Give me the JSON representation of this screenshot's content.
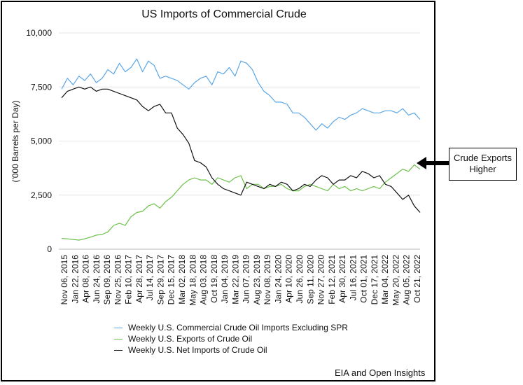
{
  "chart_data": {
    "type": "line",
    "title": "US Imports of Commercial Crude",
    "ylabel": "('000 Barrels per Day)",
    "xlabel": "",
    "ylim": [
      0,
      10000
    ],
    "yticks": [
      0,
      2500,
      5000,
      7500,
      10000
    ],
    "ytick_labels": [
      "0",
      "2,500",
      "5,000",
      "7,500",
      "10,000"
    ],
    "grid": true,
    "legend_position": "bottom",
    "x_tick_labels": [
      "Nov 06, 2015",
      "Jan 22, 2016",
      "Apr 08, 2016",
      "Jun 24, 2016",
      "Sep 09, 2016",
      "Nov 25, 2016",
      "Feb 10, 2017",
      "Apr 28, 2017",
      "Jul 14, 2017",
      "Sep 29, 2017",
      "Dec 15, 2017",
      "Mar 02, 2018",
      "May 18, 2018",
      "Aug 03, 2018",
      "Oct 19, 2018",
      "Jan 04, 2019",
      "Mar 22, 2019",
      "Jun 07, 2019",
      "Aug 23, 2019",
      "Nov 08, 2019",
      "Jan 24, 2020",
      "Apr 10, 2020",
      "Jun 26, 2020",
      "Sep 11, 2020",
      "Nov 27, 2020",
      "Feb 12, 2021",
      "Apr 30, 2021",
      "Jul 16, 2021",
      "Oct 01, 2021",
      "Dec 17, 2021",
      "Mar 04, 2022",
      "May 20, 2022",
      "Aug 05, 2022",
      "Oct 21, 2022"
    ],
    "series": [
      {
        "name": "Weekly U.S. Commercial Crude Oil Imports Excluding SPR",
        "color": "#5aa6e6",
        "values": [
          7400,
          7900,
          7600,
          8000,
          7800,
          8100,
          7700,
          7900,
          8300,
          8100,
          8600,
          8200,
          8400,
          8800,
          8200,
          8700,
          8500,
          7900,
          8000,
          7900,
          7800,
          7600,
          7400,
          7700,
          7900,
          8000,
          7600,
          8200,
          8100,
          8400,
          8000,
          8700,
          8600,
          8300,
          7700,
          7300,
          7100,
          6800,
          6800,
          6700,
          6300,
          6300,
          6100,
          5800,
          5500,
          5800,
          5600,
          5900,
          6100,
          6000,
          6200,
          6300,
          6500,
          6400,
          6300,
          6300,
          6400,
          6400,
          6300,
          6500,
          6200,
          6300,
          6000
        ]
      },
      {
        "name": "Weekly U.S. Exports of Crude Oil",
        "color": "#6cc04a",
        "values": [
          500,
          480,
          450,
          420,
          480,
          560,
          650,
          680,
          800,
          1100,
          1200,
          1100,
          1500,
          1700,
          1750,
          2000,
          2100,
          1900,
          2200,
          2400,
          2700,
          3000,
          3200,
          3300,
          3200,
          3200,
          3000,
          3300,
          3200,
          3100,
          3300,
          3400,
          2800,
          3000,
          3000,
          2800,
          2900,
          2900,
          3000,
          2800,
          2700,
          2700,
          2900,
          3000,
          2900,
          2800,
          2700,
          3000,
          2800,
          2900,
          2700,
          2800,
          2700,
          2800,
          2900,
          2800,
          3100,
          3300,
          3500,
          3700,
          3600,
          3900,
          3700
        ]
      },
      {
        "name": "Weekly U.S. Net Imports of Crude Oil",
        "color": "#111111",
        "values": [
          7000,
          7300,
          7400,
          7500,
          7400,
          7500,
          7300,
          7400,
          7400,
          7300,
          7200,
          7100,
          7000,
          6900,
          6600,
          6400,
          6600,
          6700,
          6300,
          6300,
          5600,
          5300,
          4900,
          4100,
          4000,
          3800,
          3300,
          3000,
          2800,
          2700,
          2600,
          2500,
          3100,
          3000,
          2900,
          2800,
          3000,
          2900,
          3100,
          3000,
          2700,
          2800,
          3000,
          2900,
          3200,
          3400,
          3300,
          3000,
          3200,
          3200,
          3400,
          3300,
          3600,
          3500,
          3300,
          3400,
          3000,
          2900,
          2600,
          2300,
          2500,
          2000,
          1700
        ]
      }
    ]
  },
  "source": "EIA and Open Insights",
  "callout": {
    "line1": "Crude Exports",
    "line2": "Higher"
  }
}
